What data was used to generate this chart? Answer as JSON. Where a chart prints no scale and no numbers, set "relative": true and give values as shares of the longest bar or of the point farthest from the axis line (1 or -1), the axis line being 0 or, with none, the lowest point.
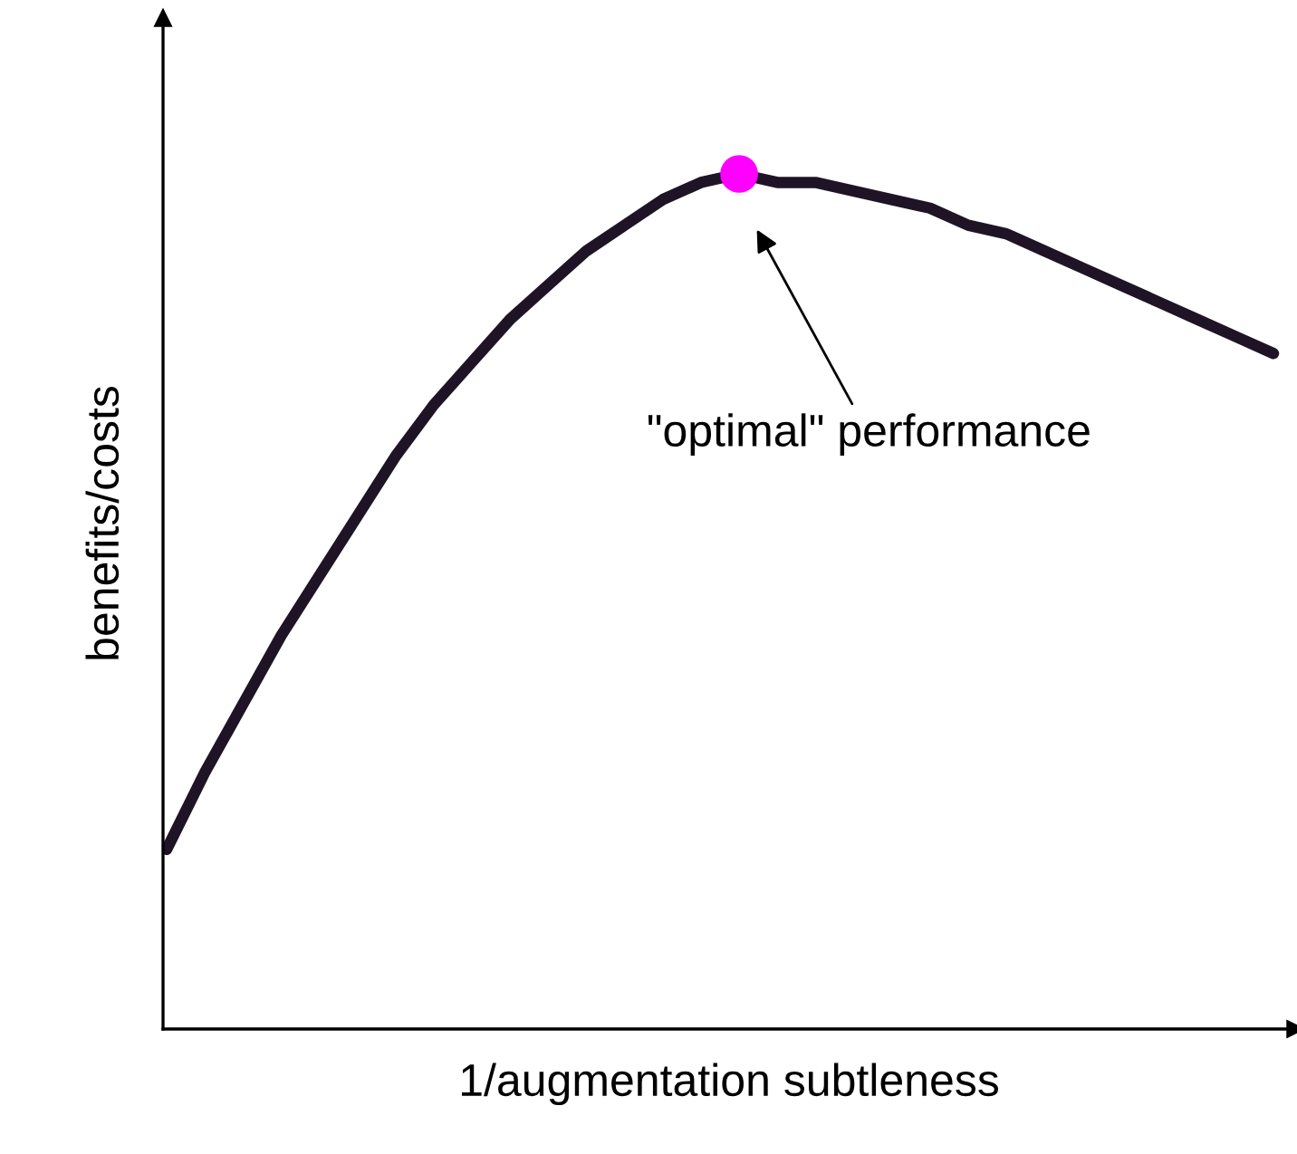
{
  "chart_data": {
    "type": "line",
    "relative": true,
    "xlabel": "1/augmentation subtleness",
    "ylabel": "benefits/costs",
    "categories": [
      null,
      null,
      null,
      null,
      null,
      null,
      null,
      null,
      null,
      null,
      null,
      null,
      null,
      null,
      null,
      null,
      null,
      null,
      null,
      null,
      null,
      null,
      null,
      null,
      null,
      null,
      null,
      null,
      null,
      null
    ],
    "series": [
      {
        "color": "#1f1426",
        "values": [
          0.21,
          0.3,
          0.38,
          0.46,
          0.53,
          0.6,
          0.67,
          0.73,
          0.78,
          0.83,
          0.87,
          0.91,
          0.94,
          0.97,
          0.99,
          1.0,
          0.99,
          0.99,
          0.98,
          0.97,
          0.96,
          0.94,
          0.93,
          0.91,
          0.89,
          0.87,
          0.85,
          0.83,
          0.81,
          0.79
        ]
      }
    ],
    "annotations": [
      "\"optimal\" performance"
    ],
    "grid": false,
    "legend": false,
    "marker": "none",
    "line_style": "solid"
  }
}
